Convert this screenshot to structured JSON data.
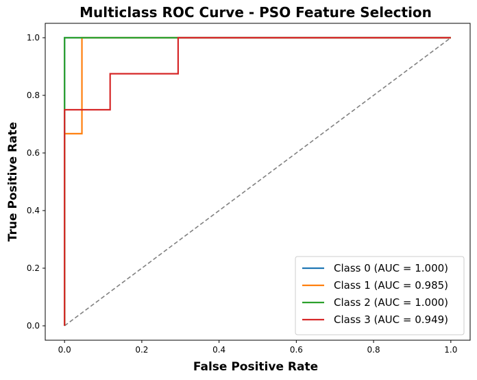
{
  "chart_data": {
    "type": "line",
    "title": "Multiclass ROC Curve - PSO Feature Selection",
    "xlabel": "False Positive Rate",
    "ylabel": "True Positive Rate",
    "xlim": [
      -0.05,
      1.05
    ],
    "ylim": [
      -0.05,
      1.05
    ],
    "x_ticks": [
      0.0,
      0.2,
      0.4,
      0.6,
      0.8,
      1.0
    ],
    "x_tick_labels": [
      "0.0",
      "0.2",
      "0.4",
      "0.6",
      "0.8",
      "1.0"
    ],
    "y_ticks": [
      0.0,
      0.2,
      0.4,
      0.6,
      0.8,
      1.0
    ],
    "y_tick_labels": [
      "0.0",
      "0.2",
      "0.4",
      "0.6",
      "0.8",
      "1.0"
    ],
    "grid": false,
    "legend_position": "lower-right",
    "series": [
      {
        "name": "Class 0 (AUC = 1.000)",
        "color": "#1f77b4",
        "x": [
          0.0,
          0.0,
          1.0
        ],
        "y": [
          0.0,
          1.0,
          1.0
        ]
      },
      {
        "name": "Class 1 (AUC = 0.985)",
        "color": "#ff7f0e",
        "x": [
          0.0,
          0.0,
          0.045,
          0.045,
          1.0
        ],
        "y": [
          0.0,
          0.667,
          0.667,
          1.0,
          1.0
        ]
      },
      {
        "name": "Class 2 (AUC = 1.000)",
        "color": "#2ca02c",
        "x": [
          0.0,
          0.0,
          1.0
        ],
        "y": [
          0.0,
          1.0,
          1.0
        ]
      },
      {
        "name": "Class 3 (AUC = 0.949)",
        "color": "#d62728",
        "x": [
          0.0,
          0.0,
          0.118,
          0.118,
          0.294,
          0.294,
          1.0
        ],
        "y": [
          0.0,
          0.75,
          0.75,
          0.875,
          0.875,
          1.0,
          1.0
        ]
      }
    ],
    "diagonal": {
      "x": [
        0.0,
        1.0
      ],
      "y": [
        0.0,
        1.0
      ],
      "color": "#808080",
      "style": "dashed"
    }
  }
}
